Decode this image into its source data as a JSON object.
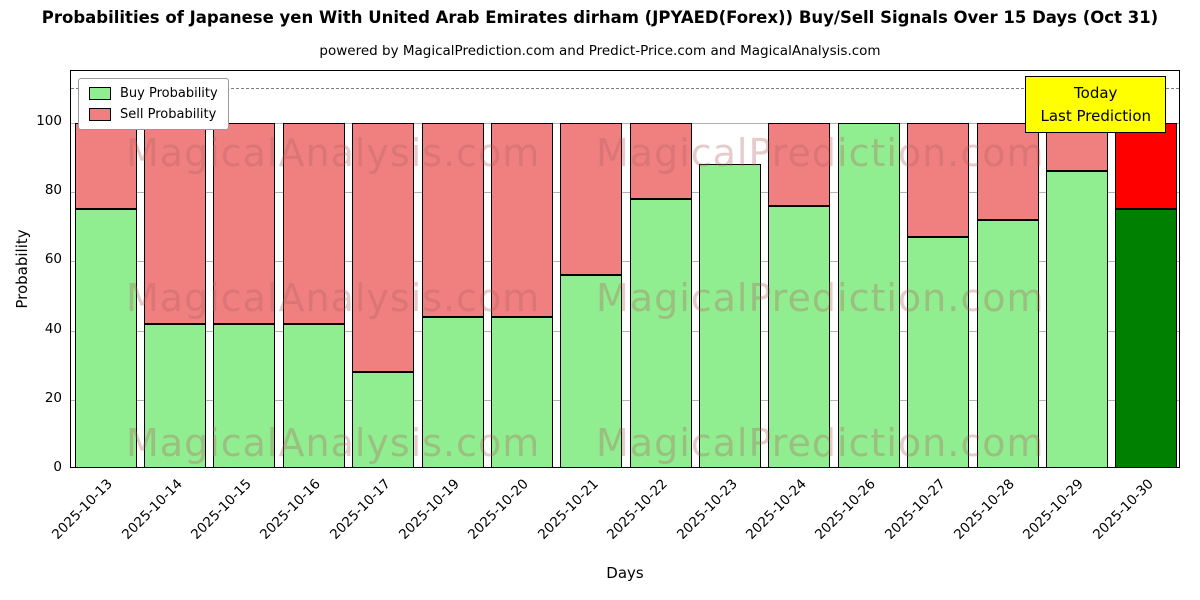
{
  "title": "Probabilities of Japanese yen With United Arab Emirates dirham (JPYAED(Forex)) Buy/Sell Signals Over 15 Days (Oct 31)",
  "subtitle": "powered by MagicalPrediction.com and Predict-Price.com and MagicalAnalysis.com",
  "watermarks": {
    "left": "MagicalAnalysis.com",
    "right": "MagicalPrediction.com"
  },
  "annotation": {
    "line1": "Today",
    "line2": "Last Prediction"
  },
  "chart_data": {
    "type": "bar",
    "stacked": true,
    "title": "Probabilities of Japanese yen With United Arab Emirates dirham (JPYAED(Forex)) Buy/Sell Signals Over 15 Days (Oct 31)",
    "categories": [
      "2025-10-13",
      "2025-10-14",
      "2025-10-15",
      "2025-10-16",
      "2025-10-17",
      "2025-10-19",
      "2025-10-20",
      "2025-10-21",
      "2025-10-22",
      "2025-10-23",
      "2025-10-24",
      "2025-10-26",
      "2025-10-27",
      "2025-10-28",
      "2025-10-29",
      "2025-10-30"
    ],
    "series": [
      {
        "name": "Buy Probability",
        "color": "#90ee90",
        "values": [
          75,
          42,
          42,
          42,
          28,
          44,
          44,
          56,
          78,
          88,
          76,
          100,
          67,
          72,
          86,
          75
        ]
      },
      {
        "name": "Sell Probability",
        "color": "#f08080",
        "values": [
          25,
          58,
          58,
          58,
          72,
          56,
          56,
          44,
          22,
          0,
          24,
          0,
          33,
          28,
          14,
          25
        ]
      }
    ],
    "today_index": 15,
    "today_colors": {
      "buy": "#008000",
      "sell": "#ff0000"
    },
    "xlabel": "Days",
    "ylabel": "Probability",
    "yticks": [
      0,
      20,
      40,
      60,
      80,
      100
    ],
    "ylim": [
      0,
      115
    ],
    "dashed_line_y": 110,
    "legend_position": "upper left",
    "grid": true
  }
}
